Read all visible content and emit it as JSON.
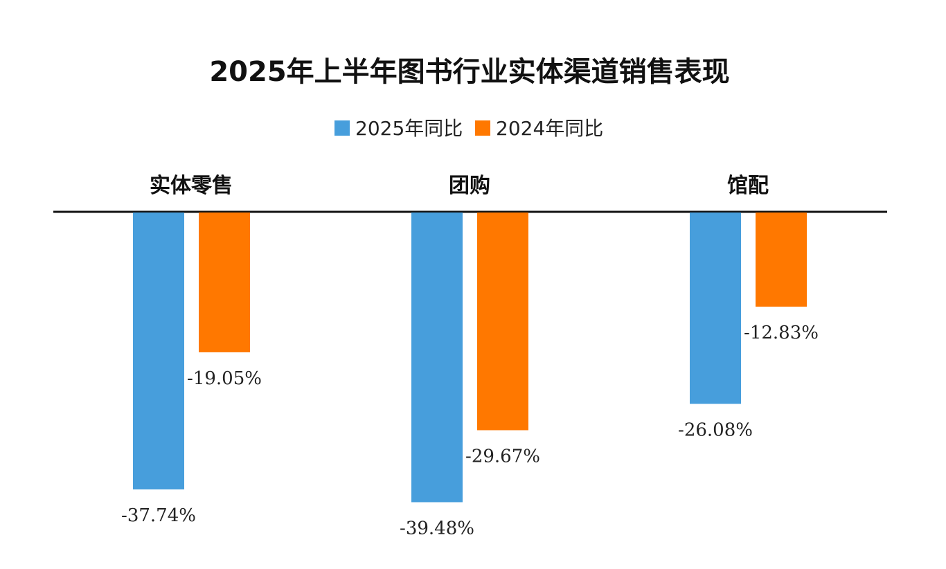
{
  "chart_data": {
    "type": "bar",
    "title": "2025年上半年图书行业实体渠道销售表现",
    "categories": [
      "实体零售",
      "团购",
      "馆配"
    ],
    "series": [
      {
        "name": "2025年同比",
        "color": "#479EDC",
        "values": [
          -37.74,
          -39.48,
          -26.08
        ],
        "labels": [
          "-37.74%",
          "-39.48%",
          "-26.08%"
        ]
      },
      {
        "name": "2024年同比",
        "color": "#FF7800",
        "values": [
          -19.05,
          -29.67,
          -12.83
        ],
        "labels": [
          "-19.05%",
          "-29.67%",
          "-12.83%"
        ]
      }
    ],
    "ylim": [
      -40,
      0
    ],
    "grid": false,
    "legend_position": "top-center",
    "category_label_position": "top",
    "xlabel": "",
    "ylabel": ""
  }
}
